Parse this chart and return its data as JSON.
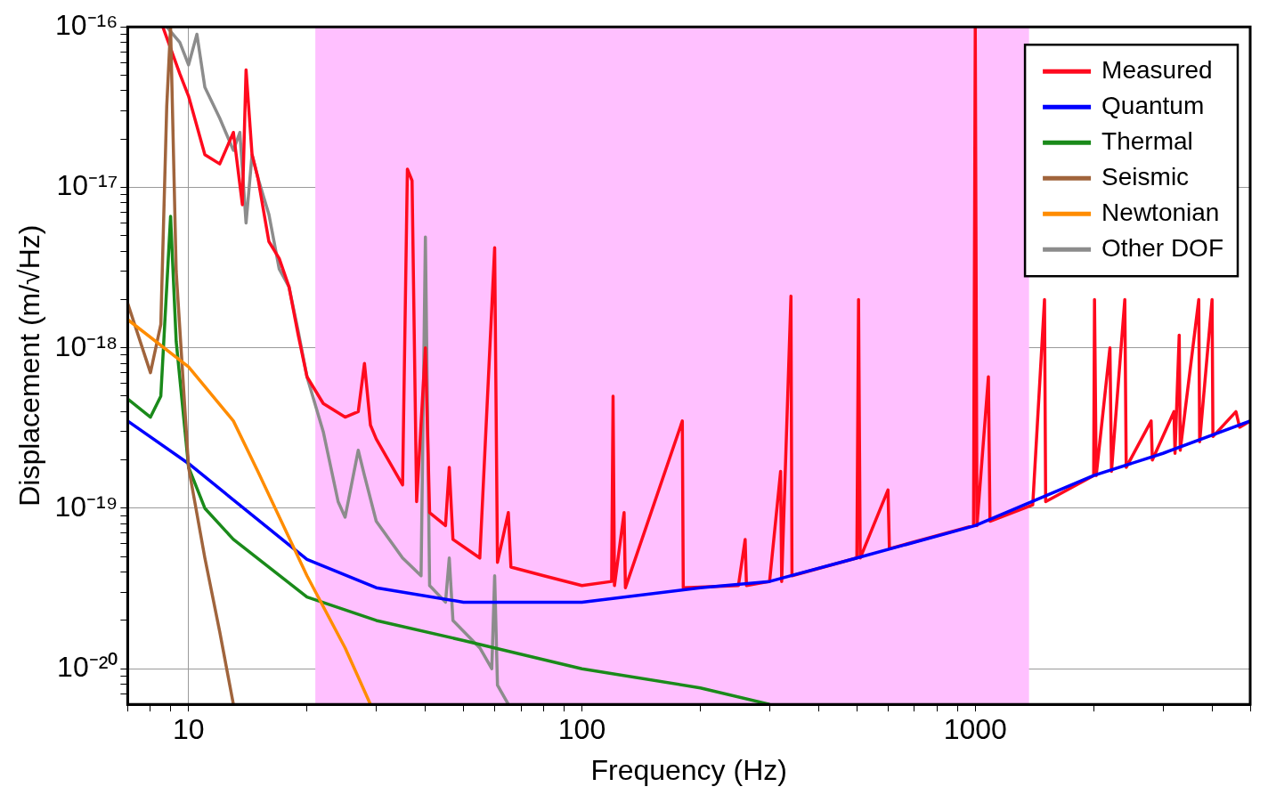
{
  "chart_data": {
    "type": "line",
    "xlabel": "Frequency (Hz)",
    "ylabel": "Displacement (m/√Hz)",
    "log": "xy",
    "grid": true,
    "legend": "top right",
    "marker": "none",
    "line_style": "solid",
    "xlim": [
      7,
      5000
    ],
    "ylim": [
      6e-21,
      1e-16
    ],
    "xticks": [
      {
        "value": 7,
        "label": null
      },
      {
        "value": 8,
        "label": null
      },
      {
        "value": 9,
        "label": null
      },
      10,
      {
        "value": 20,
        "label": null
      },
      {
        "value": 30,
        "label": null
      },
      {
        "value": 40,
        "label": null
      },
      {
        "value": 50,
        "label": null
      },
      {
        "value": 60,
        "label": null
      },
      {
        "value": 70,
        "label": null
      },
      {
        "value": 80,
        "label": null
      },
      {
        "value": 90,
        "label": null
      },
      100,
      {
        "value": 200,
        "label": null
      },
      {
        "value": 300,
        "label": null
      },
      {
        "value": 400,
        "label": null
      },
      {
        "value": 500,
        "label": null
      },
      {
        "value": 600,
        "label": null
      },
      {
        "value": 700,
        "label": null
      },
      {
        "value": 800,
        "label": null
      },
      {
        "value": 900,
        "label": null
      },
      1000,
      {
        "value": 2000,
        "label": null
      },
      {
        "value": 3000,
        "label": null
      },
      {
        "value": 4000,
        "label": null
      },
      {
        "value": 5000,
        "label": null
      }
    ],
    "yticks": [
      {
        "value": 7e-21,
        "label": null
      },
      {
        "value": 8e-21,
        "label": null
      },
      {
        "value": 9e-21,
        "label": null
      },
      {
        "value": 1e-20,
        "label": "10⁻²⁰"
      },
      {
        "value": 2e-20,
        "label": null
      },
      {
        "value": 3e-20,
        "label": null
      },
      {
        "value": 4e-20,
        "label": null
      },
      {
        "value": 5e-20,
        "label": null
      },
      {
        "value": 6e-20,
        "label": null
      },
      {
        "value": 7e-20,
        "label": null
      },
      {
        "value": 8e-20,
        "label": null
      },
      {
        "value": 9e-20,
        "label": null
      },
      {
        "value": 1e-19,
        "label": "10⁻¹⁹"
      },
      {
        "value": 2e-19,
        "label": null
      },
      {
        "value": 3e-19,
        "label": null
      },
      {
        "value": 4e-19,
        "label": null
      },
      {
        "value": 5e-19,
        "label": null
      },
      {
        "value": 6e-19,
        "label": null
      },
      {
        "value": 7e-19,
        "label": null
      },
      {
        "value": 8e-19,
        "label": null
      },
      {
        "value": 9e-19,
        "label": null
      },
      {
        "value": 1e-18,
        "label": "10⁻¹⁸"
      },
      {
        "value": 2e-18,
        "label": null
      },
      {
        "value": 3e-18,
        "label": null
      },
      {
        "value": 4e-18,
        "label": null
      },
      {
        "value": 5e-18,
        "label": null
      },
      {
        "value": 6e-18,
        "label": null
      },
      {
        "value": 7e-18,
        "label": null
      },
      {
        "value": 8e-18,
        "label": null
      },
      {
        "value": 9e-18,
        "label": null
      },
      {
        "value": 1e-17,
        "label": "10⁻¹⁷"
      },
      {
        "value": 2e-17,
        "label": null
      },
      {
        "value": 3e-17,
        "label": null
      },
      {
        "value": 4e-17,
        "label": null
      },
      {
        "value": 5e-17,
        "label": null
      },
      {
        "value": 6e-17,
        "label": null
      },
      {
        "value": 7e-17,
        "label": null
      },
      {
        "value": 8e-17,
        "label": null
      },
      {
        "value": 9e-17,
        "label": null
      },
      {
        "value": 1e-16,
        "label": "10⁻¹⁶"
      }
    ],
    "bands": [
      {
        "axis": "x",
        "from": 21,
        "to": 1370,
        "color": "#ffc0ff"
      }
    ],
    "series": [
      {
        "name": "Other DOF",
        "color": "#8c8c8c",
        "x": [
          8.8,
          9.5,
          10,
          10.5,
          11,
          12,
          13,
          13.5,
          14,
          14.5,
          15,
          16,
          17,
          18,
          19,
          20,
          22,
          24,
          25,
          27,
          28,
          30,
          35,
          39,
          40,
          41,
          45,
          46,
          47,
          55,
          59,
          60,
          61,
          65
        ],
        "values": [
          1e-16,
          8e-17,
          5.8e-17,
          9e-17,
          4.2e-17,
          2.7e-17,
          1.7e-17,
          2.2e-17,
          6e-18,
          1.6e-17,
          1.15e-17,
          6.8e-18,
          3.1e-18,
          2.4e-18,
          1.27e-18,
          6.6e-19,
          3e-19,
          1.1e-19,
          8.8e-20,
          2.3e-19,
          1.6e-19,
          8.3e-20,
          4.9e-20,
          3.8e-20,
          4.9e-18,
          3.3e-20,
          2.6e-20,
          4.9e-20,
          2e-20,
          1.35e-20,
          1e-20,
          3.8e-20,
          7.9e-21,
          6e-21
        ]
      },
      {
        "name": "Measured",
        "color": "#ff0a1e",
        "x": [
          8.6,
          9.5,
          10,
          11,
          12,
          13,
          13.7,
          14,
          14.5,
          15,
          16,
          17,
          18,
          19,
          20,
          22,
          25,
          27,
          28,
          29,
          30,
          35,
          36,
          37,
          38,
          40,
          41,
          45,
          46,
          47,
          55,
          60,
          61,
          65,
          66,
          80,
          100,
          119,
          120,
          121,
          128,
          129,
          180,
          181,
          250,
          260,
          262,
          300,
          320,
          322,
          340,
          342,
          500,
          505,
          510,
          600,
          605,
          990,
          1000,
          1010,
          1080,
          1090,
          1400,
          1500,
          1510,
          2000,
          2010,
          2030,
          2200,
          2220,
          2400,
          2420,
          2800,
          2820,
          3200,
          3220,
          3300,
          3320,
          3700,
          3720,
          4000,
          4020,
          4600,
          4700,
          5000
        ],
        "values": [
          1e-16,
          5.1e-17,
          3.7e-17,
          1.6e-17,
          1.4e-17,
          2.2e-17,
          7.8e-18,
          5.4e-17,
          1.6e-17,
          1.15e-17,
          4.6e-18,
          3.6e-18,
          2.4e-18,
          1.2e-18,
          6.6e-19,
          4.5e-19,
          3.7e-19,
          4e-19,
          8e-19,
          3.3e-19,
          2.7e-19,
          1.4e-19,
          1.3e-17,
          1.1e-17,
          1.1e-19,
          1e-18,
          9.4e-20,
          7.8e-20,
          1.8e-19,
          6.4e-20,
          4.9e-20,
          4.2e-18,
          4.6e-20,
          9.4e-20,
          4.3e-20,
          3.8e-20,
          3.3e-20,
          3.5e-20,
          5e-19,
          3.3e-20,
          9.4e-20,
          3.2e-20,
          3.5e-19,
          3.2e-20,
          3.3e-20,
          6.4e-20,
          3.3e-20,
          3.5e-20,
          1.7e-19,
          3.5e-20,
          2.1e-18,
          3.8e-20,
          4.9e-20,
          2e-18,
          4.9e-20,
          1.3e-19,
          5.6e-20,
          7.8e-20,
          1e-16,
          7.8e-20,
          6.6e-19,
          8.3e-20,
          1.05e-19,
          2e-18,
          1.1e-19,
          1.6e-19,
          2e-18,
          1.6e-19,
          1e-18,
          1.7e-19,
          2e-18,
          1.8e-19,
          3.5e-19,
          2e-19,
          4e-19,
          2.2e-19,
          1.2e-18,
          2.3e-19,
          2e-18,
          2.6e-19,
          2e-18,
          2.8e-19,
          4e-19,
          3.2e-19,
          3.5e-19
        ]
      },
      {
        "name": "Quantum",
        "color": "#0000ff",
        "x": [
          7,
          10,
          20,
          30,
          50,
          100,
          200,
          300,
          500,
          1000,
          2000,
          3000,
          5000
        ],
        "values": [
          3.5e-19,
          1.9e-19,
          4.8e-20,
          3.2e-20,
          2.6e-20,
          2.6e-20,
          3.2e-20,
          3.5e-20,
          4.9e-20,
          7.8e-20,
          1.6e-19,
          2.2e-19,
          3.5e-19
        ]
      },
      {
        "name": "Thermal",
        "color": "#1a8a1a",
        "x": [
          7,
          8,
          8.5,
          9,
          9.3,
          10,
          11,
          13,
          20,
          30,
          50,
          100,
          200,
          300
        ],
        "values": [
          4.8e-19,
          3.7e-19,
          5e-19,
          6.6e-18,
          1.1e-18,
          1.8e-19,
          1e-19,
          6.4e-20,
          2.8e-20,
          2e-20,
          1.5e-20,
          1e-20,
          7.6e-21,
          6e-21
        ]
      },
      {
        "name": "Seismic",
        "color": "#a0643c",
        "x": [
          7,
          8,
          8.5,
          8.8,
          9,
          9.3,
          10,
          11,
          12,
          13
        ],
        "values": [
          1.9e-18,
          7e-19,
          1.4e-18,
          3.2e-17,
          1e-16,
          3e-18,
          1.8e-19,
          4.9e-20,
          1.7e-20,
          6e-21
        ]
      },
      {
        "name": "Newtonian",
        "color": "#ff8c00",
        "x": [
          7,
          10,
          13,
          15,
          20,
          25,
          29
        ],
        "values": [
          1.5e-18,
          7.6e-19,
          3.5e-19,
          1.7e-19,
          3.8e-20,
          1.35e-20,
          6e-21
        ]
      }
    ]
  }
}
